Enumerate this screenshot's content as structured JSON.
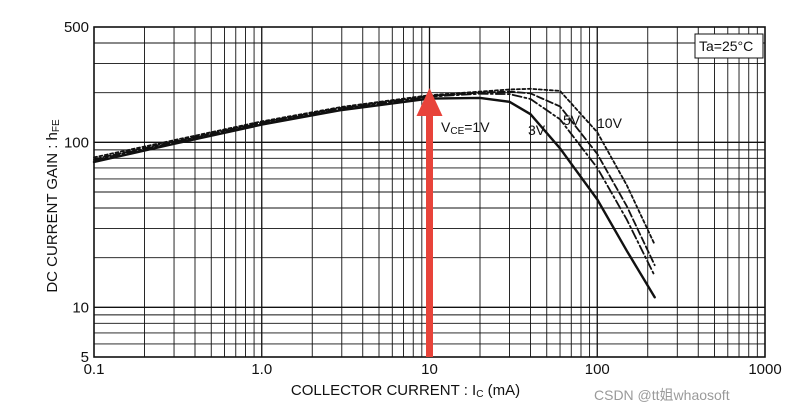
{
  "chart_data": {
    "type": "line",
    "title": "",
    "xlabel": {
      "main": "COLLECTOR CURRENT : I",
      "sub": "C",
      "unit": " (mA)"
    },
    "ylabel": {
      "main": "DC CURRENT GAIN : h",
      "sub": "FE"
    },
    "xscale": "log",
    "yscale": "log",
    "xlim": [
      0.1,
      1000
    ],
    "ylim": [
      5,
      500
    ],
    "x_ticks": [
      {
        "value": 0.1,
        "label": "0.1"
      },
      {
        "value": 1,
        "label": "1.0"
      },
      {
        "value": 10,
        "label": "10"
      },
      {
        "value": 100,
        "label": "100"
      },
      {
        "value": 1000,
        "label": "1000"
      }
    ],
    "y_ticks": [
      {
        "value": 5,
        "label": "5"
      },
      {
        "value": 10,
        "label": "10"
      },
      {
        "value": 100,
        "label": "100"
      },
      {
        "value": 500,
        "label": "500"
      }
    ],
    "grid": true,
    "condition_label": "Ta=25°C",
    "series": [
      {
        "name": "VCE=1V",
        "label_main": "V",
        "label_sub": "CE",
        "label_rest": "=1V",
        "style": "solid",
        "x": [
          0.1,
          0.3,
          1,
          3,
          10,
          20,
          30,
          40,
          60,
          100,
          150,
          220
        ],
        "y": [
          76,
          98,
          128,
          157,
          184,
          186,
          176,
          148,
          92,
          45,
          22,
          11.5
        ]
      },
      {
        "name": "3V",
        "label": "3V",
        "style": "dashdot",
        "x": [
          0.1,
          0.3,
          1,
          3,
          10,
          20,
          30,
          40,
          60,
          100,
          150,
          220
        ],
        "y": [
          78,
          100,
          131,
          160,
          189,
          197,
          196,
          183,
          138,
          70,
          34,
          15.5
        ]
      },
      {
        "name": "5V",
        "label": "5V",
        "style": "dashed",
        "x": [
          0.1,
          0.3,
          1,
          3,
          10,
          20,
          30,
          40,
          60,
          100,
          150,
          220
        ],
        "y": [
          79,
          101,
          132,
          162,
          191,
          200,
          203,
          198,
          165,
          85,
          41,
          18
        ]
      },
      {
        "name": "10V",
        "label": "10V",
        "style": "dotted",
        "x": [
          0.1,
          0.3,
          1,
          3,
          10,
          20,
          30,
          40,
          60,
          100,
          150,
          220
        ],
        "y": [
          81,
          103,
          134,
          164,
          193,
          203,
          209,
          211,
          205,
          115,
          55,
          24
        ]
      }
    ],
    "annotation": {
      "type": "arrow",
      "color": "#e8433a",
      "x": 10
    }
  },
  "watermark": "CSDN @tt姐whaosoft"
}
